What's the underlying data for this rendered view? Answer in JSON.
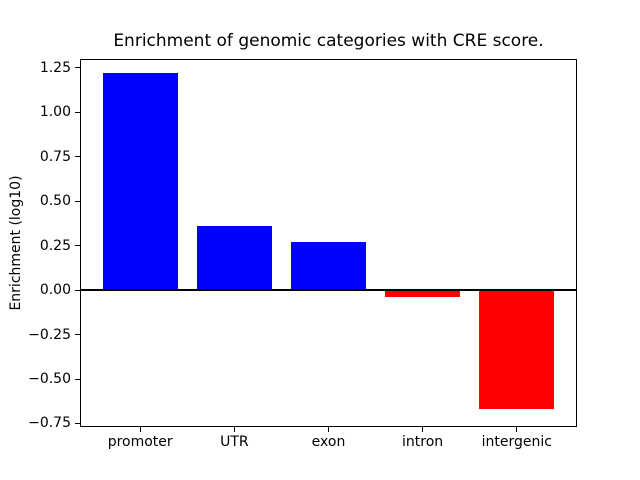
{
  "chart_data": {
    "type": "bar",
    "title": "Enrichment of genomic categories with CRE score.",
    "xlabel": "",
    "ylabel": "Enrichment (log10)",
    "categories": [
      "promoter",
      "UTR",
      "exon",
      "intron",
      "intergenic"
    ],
    "values": [
      1.22,
      0.36,
      0.27,
      -0.04,
      -0.67
    ],
    "colors": {
      "positive": "#0000ff",
      "negative": "#ff0000"
    },
    "ylim": [
      -0.77,
      1.3
    ],
    "yticks": [
      {
        "v": 1.25,
        "label": "1.25"
      },
      {
        "v": 1.0,
        "label": "1.00"
      },
      {
        "v": 0.75,
        "label": "0.75"
      },
      {
        "v": 0.5,
        "label": "0.50"
      },
      {
        "v": 0.25,
        "label": "0.25"
      },
      {
        "v": 0.0,
        "label": "0.00"
      },
      {
        "v": -0.25,
        "label": "−0.25"
      },
      {
        "v": -0.5,
        "label": "−0.50"
      },
      {
        "v": -0.75,
        "label": "−0.75"
      }
    ],
    "bar_width_frac": 0.8,
    "x_margin": 0.64,
    "zero_line": true,
    "grid": false,
    "legend": null
  }
}
